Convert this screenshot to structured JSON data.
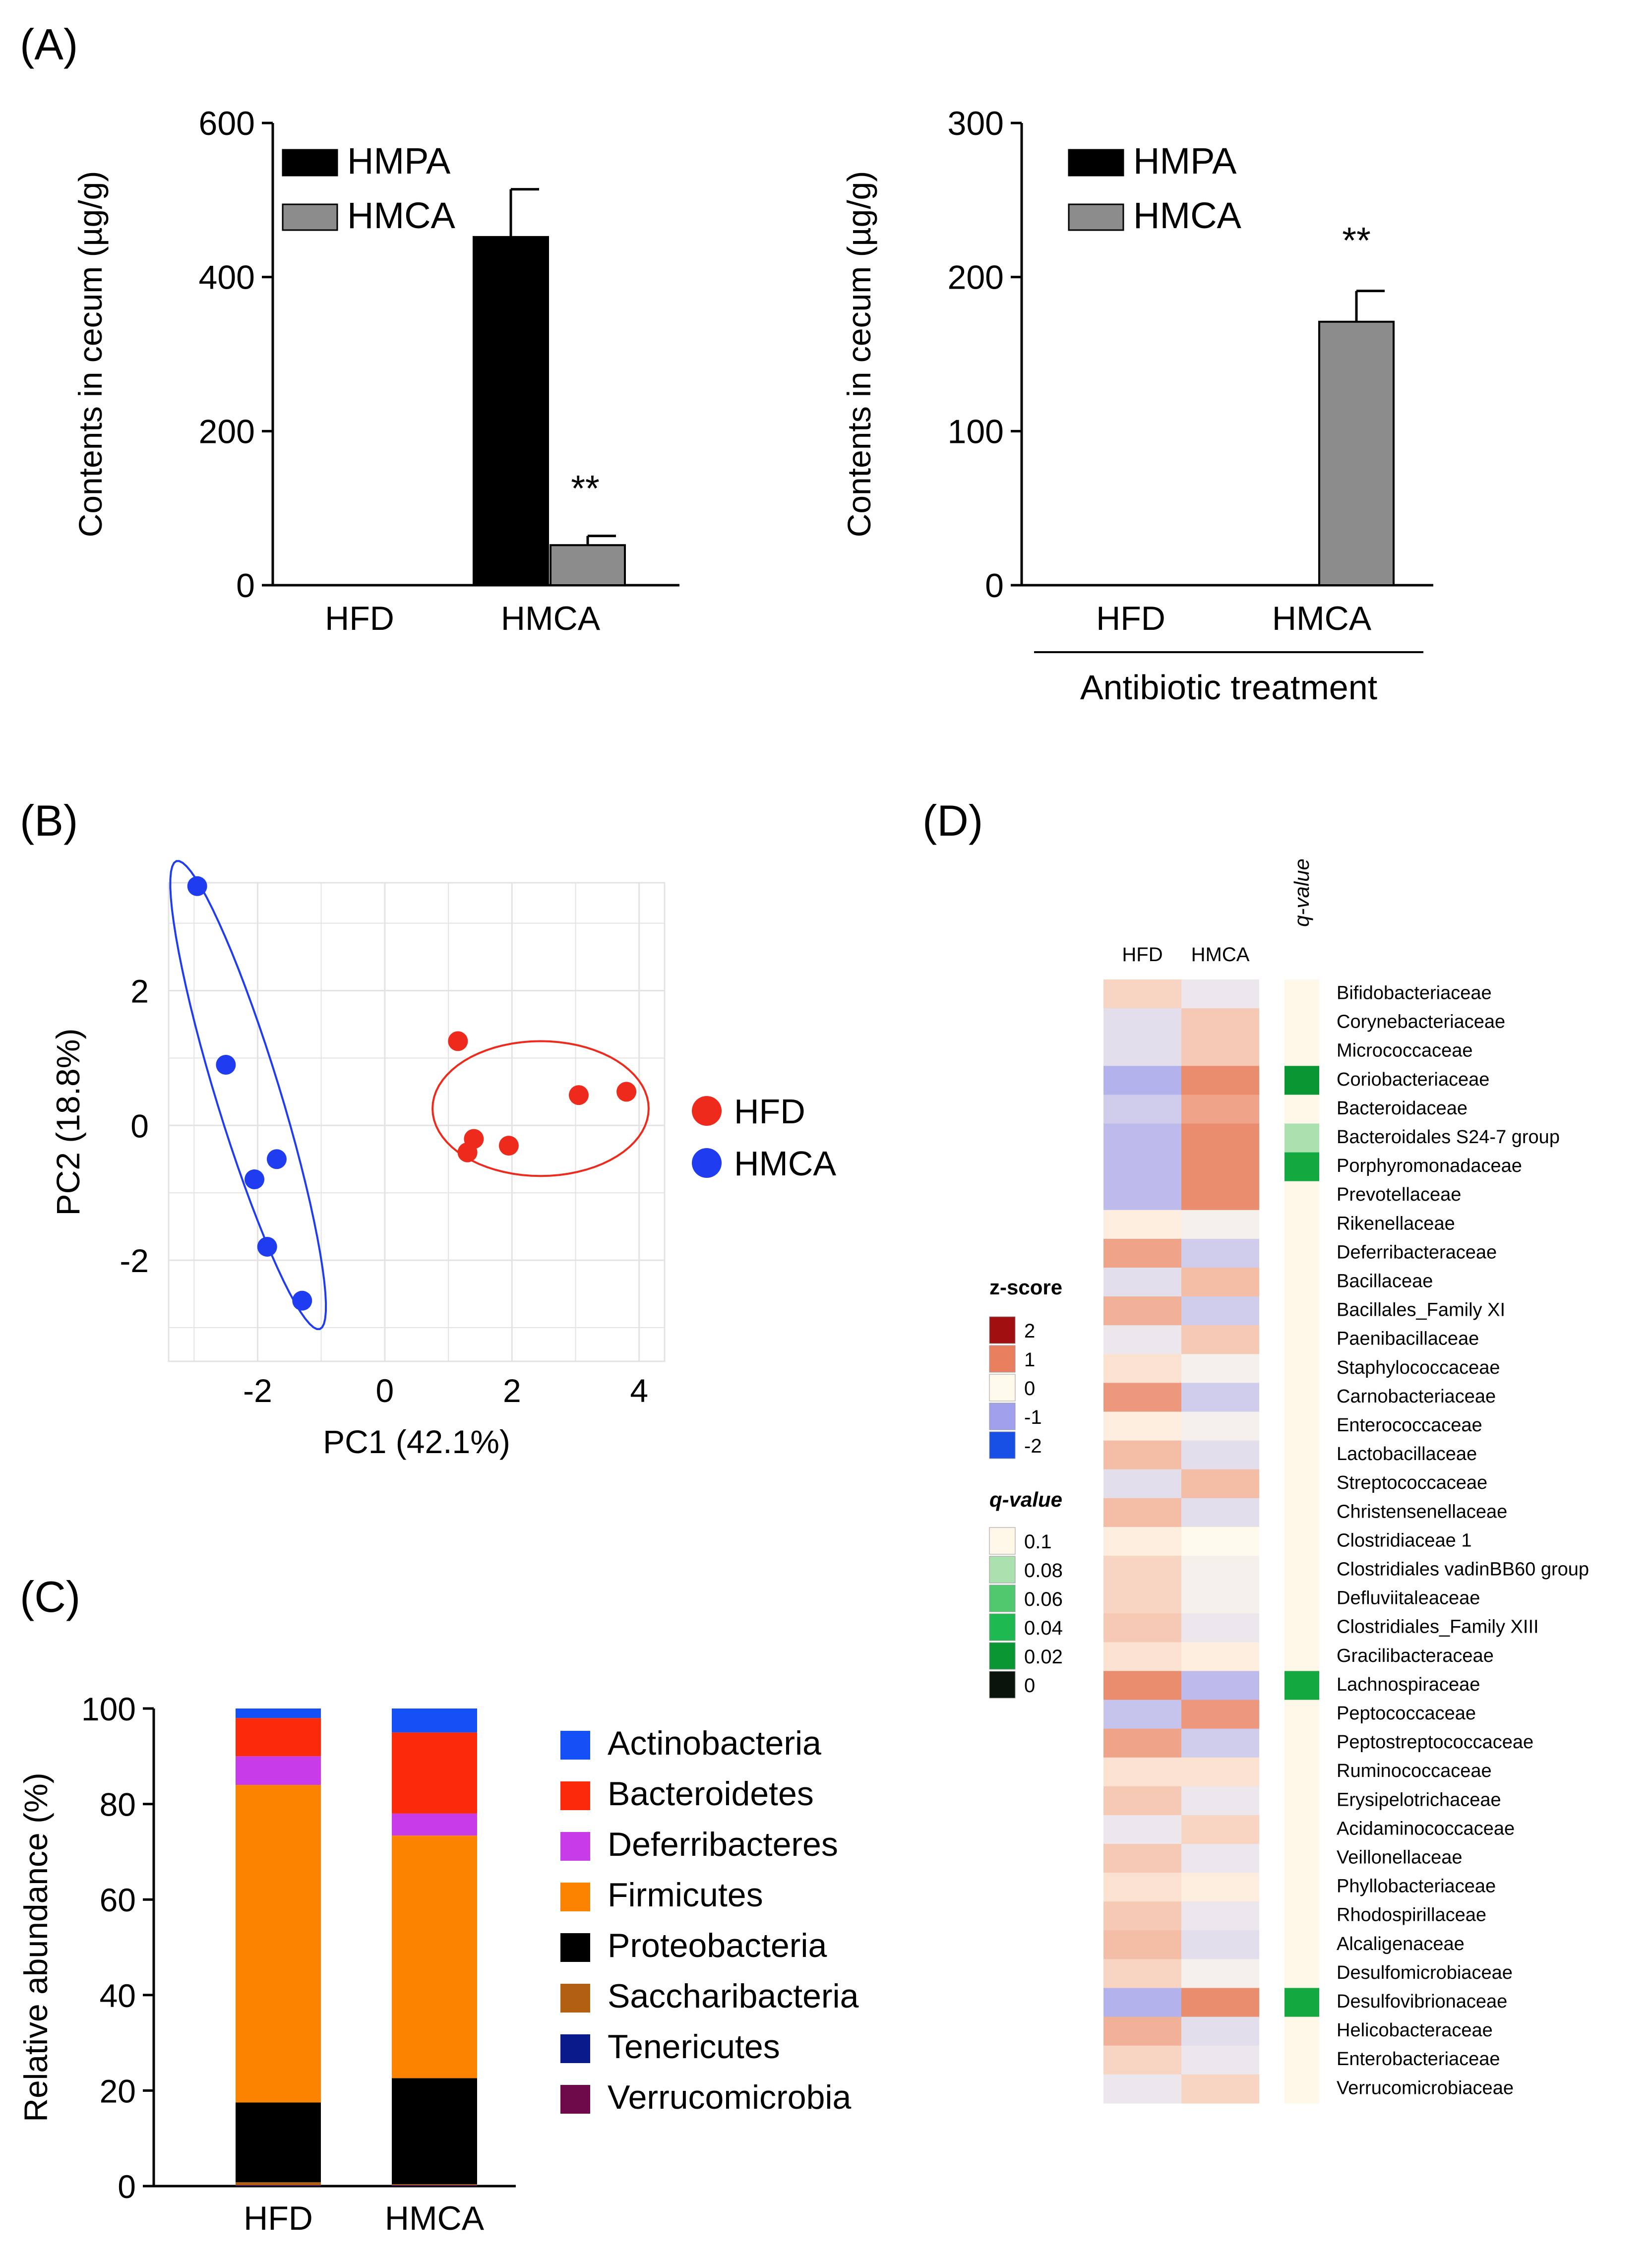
{
  "panels": {
    "a": "(A)",
    "b": "(B)",
    "c": "(C)",
    "d": "(D)"
  },
  "colors": {
    "black": "#000000",
    "gray": "#8c8c8c",
    "red": "#ee2a1c",
    "blue": "#1f3cf0",
    "grid": "#e3e3e3",
    "Actinobacteria": "#1450f5",
    "Bacteroidetes": "#fb2a0b",
    "Deferribacteres": "#c73ce8",
    "Firmicutes": "#fb8300",
    "Proteobacteria": "#000000",
    "Saccharibacteria": "#b06010",
    "Tenericutes": "#0a1a8a",
    "Verrucomicrobia": "#6e0a4a"
  },
  "chart_data": [
    {
      "id": "A1",
      "type": "bar",
      "ylabel": "Contents in cecum (µg/g)",
      "ylim": [
        0,
        600
      ],
      "yticks": [
        0,
        200,
        400,
        600
      ],
      "categories": [
        "HFD",
        "HMCA"
      ],
      "series": [
        {
          "name": "HMPA",
          "values": [
            0,
            452
          ],
          "errors": [
            0,
            62
          ]
        },
        {
          "name": "HMCA",
          "values": [
            0,
            52
          ],
          "errors": [
            0,
            12
          ]
        }
      ],
      "annotation": "**"
    },
    {
      "id": "A2",
      "type": "bar",
      "ylabel": "Contents in cecum (µg/g)",
      "ylim": [
        0,
        300
      ],
      "yticks": [
        0,
        100,
        200,
        300
      ],
      "categories": [
        "HFD",
        "HMCA"
      ],
      "series": [
        {
          "name": "HMPA",
          "values": [
            0,
            0
          ],
          "errors": [
            0,
            0
          ]
        },
        {
          "name": "HMCA",
          "values": [
            0,
            171
          ],
          "errors": [
            0,
            20
          ]
        }
      ],
      "annotation": "**",
      "group_label": "Antibiotic treatment"
    },
    {
      "id": "B",
      "type": "scatter",
      "xlabel": "PC1 (42.1%)",
      "ylabel": "PC2 (18.8%)",
      "xlim": [
        -3.4,
        4.4
      ],
      "ylim": [
        -3.5,
        3.6
      ],
      "xticks": [
        -2,
        0,
        2,
        4
      ],
      "yticks": [
        -2,
        0,
        2
      ],
      "series": [
        {
          "name": "HFD",
          "points": [
            [
              1.15,
              1.25
            ],
            [
              3.05,
              0.45
            ],
            [
              3.8,
              0.5
            ],
            [
              1.4,
              -0.2
            ],
            [
              1.3,
              -0.4
            ],
            [
              1.95,
              -0.3
            ]
          ],
          "ellipse": {
            "center": [
              2.45,
              0.25
            ],
            "rx": 1.7,
            "ry": 1.0,
            "angle_deg": 0
          }
        },
        {
          "name": "HMCA",
          "points": [
            [
              -2.95,
              3.55
            ],
            [
              -2.5,
              0.9
            ],
            [
              -1.7,
              -0.5
            ],
            [
              -2.05,
              -0.8
            ],
            [
              -1.85,
              -1.8
            ],
            [
              -1.3,
              -2.6
            ]
          ],
          "ellipse": {
            "center": [
              -2.15,
              0.45
            ],
            "rx": 3.65,
            "ry": 0.5,
            "angle_deg": -72
          }
        }
      ]
    },
    {
      "id": "C",
      "type": "bar",
      "stacked": true,
      "ylabel": "Relative abundance (%)",
      "ylim": [
        0,
        100
      ],
      "yticks": [
        0,
        20,
        40,
        60,
        80,
        100
      ],
      "categories": [
        "HFD",
        "HMCA"
      ],
      "series": [
        {
          "name": "Verrucomicrobia",
          "values": [
            0.1,
            0.1
          ]
        },
        {
          "name": "Tenericutes",
          "values": [
            0.1,
            0.1
          ]
        },
        {
          "name": "Saccharibacteria",
          "values": [
            0.6,
            0.2
          ]
        },
        {
          "name": "Proteobacteria",
          "values": [
            16.7,
            22.2
          ]
        },
        {
          "name": "Firmicutes",
          "values": [
            66.5,
            50.8
          ]
        },
        {
          "name": "Deferribacteres",
          "values": [
            6.0,
            4.6
          ]
        },
        {
          "name": "Bacteroidetes",
          "values": [
            8.0,
            17.0
          ]
        },
        {
          "name": "Actinobacteria",
          "values": [
            2.0,
            5.0
          ]
        }
      ],
      "legend": [
        "Actinobacteria",
        "Bacteroidetes",
        "Deferribacteres",
        "Firmicutes",
        "Proteobacteria",
        "Saccharibacteria",
        "Tenericutes",
        "Verrucomicrobia"
      ]
    },
    {
      "id": "D",
      "type": "heatmap",
      "columns": [
        "HFD",
        "HMCA"
      ],
      "qvalue_header": "q-value",
      "zscore_title": "z-score",
      "zscore_ticks": [
        "2",
        "1",
        "0",
        "-1",
        "-2"
      ],
      "qvalue_title": "q-value",
      "qvalue_ticks": [
        "0.1",
        "0.08",
        "0.06",
        "0.04",
        "0.02",
        "0"
      ],
      "rows": [
        {
          "name": "Bifidobacteriaceae",
          "z": [
            0.3,
            -0.2
          ],
          "q": 0.1
        },
        {
          "name": "Corynebacteriaceae",
          "z": [
            -0.3,
            0.4
          ],
          "q": 0.1
        },
        {
          "name": "Micrococcaceae",
          "z": [
            -0.3,
            0.4
          ],
          "q": 0.1
        },
        {
          "name": "Coriobacteriaceae",
          "z": [
            -0.8,
            0.9
          ],
          "q": 0.02
        },
        {
          "name": "Bacteroidaceae",
          "z": [
            -0.5,
            0.7
          ],
          "q": 0.1
        },
        {
          "name": "Bacteroidales S24-7 group",
          "z": [
            -0.7,
            0.9
          ],
          "q": 0.08
        },
        {
          "name": "Porphyromonadaceae",
          "z": [
            -0.7,
            0.9
          ],
          "q": 0.03
        },
        {
          "name": "Prevotellaceae",
          "z": [
            -0.7,
            0.9
          ],
          "q": 0.1
        },
        {
          "name": "Rikenellaceae",
          "z": [
            0.1,
            -0.1
          ],
          "q": 0.1
        },
        {
          "name": "Deferribacteraceae",
          "z": [
            0.7,
            -0.5
          ],
          "q": 0.1
        },
        {
          "name": "Bacillaceae",
          "z": [
            -0.3,
            0.5
          ],
          "q": 0.1
        },
        {
          "name": "Bacillales_Family XI",
          "z": [
            0.6,
            -0.5
          ],
          "q": 0.1
        },
        {
          "name": "Paenibacillaceae",
          "z": [
            -0.2,
            0.4
          ],
          "q": 0.1
        },
        {
          "name": "Staphylococcaceae",
          "z": [
            0.2,
            -0.1
          ],
          "q": 0.1
        },
        {
          "name": "Carnobacteriaceae",
          "z": [
            0.8,
            -0.5
          ],
          "q": 0.1
        },
        {
          "name": "Enterococcaceae",
          "z": [
            0.1,
            -0.1
          ],
          "q": 0.1
        },
        {
          "name": "Lactobacillaceae",
          "z": [
            0.5,
            -0.3
          ],
          "q": 0.1
        },
        {
          "name": "Streptococcaceae",
          "z": [
            -0.3,
            0.5
          ],
          "q": 0.1
        },
        {
          "name": "Christensenellaceae",
          "z": [
            0.5,
            -0.3
          ],
          "q": 0.1
        },
        {
          "name": "Clostridiaceae 1",
          "z": [
            0.1,
            0.0
          ],
          "q": 0.1
        },
        {
          "name": "Clostridiales vadinBB60 group",
          "z": [
            0.3,
            -0.1
          ],
          "q": 0.1
        },
        {
          "name": "Defluviitaleaceae",
          "z": [
            0.3,
            -0.1
          ],
          "q": 0.1
        },
        {
          "name": "Clostridiales_Family XIII",
          "z": [
            0.4,
            -0.2
          ],
          "q": 0.1
        },
        {
          "name": "Gracilibacteraceae",
          "z": [
            0.2,
            0.1
          ],
          "q": 0.1
        },
        {
          "name": "Lachnospiraceae",
          "z": [
            0.9,
            -0.7
          ],
          "q": 0.03
        },
        {
          "name": "Peptococcaceae",
          "z": [
            -0.6,
            0.8
          ],
          "q": 0.1
        },
        {
          "name": "Peptostreptococcaceae",
          "z": [
            0.7,
            -0.5
          ],
          "q": 0.1
        },
        {
          "name": "Ruminococcaceae",
          "z": [
            0.2,
            0.2
          ],
          "q": 0.1
        },
        {
          "name": "Erysipelotrichaceae",
          "z": [
            0.4,
            -0.2
          ],
          "q": 0.1
        },
        {
          "name": "Acidaminococcaceae",
          "z": [
            -0.2,
            0.3
          ],
          "q": 0.1
        },
        {
          "name": "Veillonellaceae",
          "z": [
            0.4,
            -0.2
          ],
          "q": 0.1
        },
        {
          "name": "Phyllobacteriaceae",
          "z": [
            0.2,
            0.1
          ],
          "q": 0.1
        },
        {
          "name": "Rhodospirillaceae",
          "z": [
            0.4,
            -0.2
          ],
          "q": 0.1
        },
        {
          "name": "Alcaligenaceae",
          "z": [
            0.5,
            -0.3
          ],
          "q": 0.1
        },
        {
          "name": "Desulfomicrobiaceae",
          "z": [
            0.3,
            -0.1
          ],
          "q": 0.1
        },
        {
          "name": "Desulfovibrionaceae",
          "z": [
            -0.8,
            0.9
          ],
          "q": 0.03
        },
        {
          "name": "Helicobacteraceae",
          "z": [
            0.6,
            -0.3
          ],
          "q": 0.1
        },
        {
          "name": "Enterobacteriaceae",
          "z": [
            0.3,
            -0.2
          ],
          "q": 0.1
        },
        {
          "name": "Verrucomicrobiaceae",
          "z": [
            -0.2,
            0.3
          ],
          "q": 0.1
        }
      ]
    }
  ]
}
